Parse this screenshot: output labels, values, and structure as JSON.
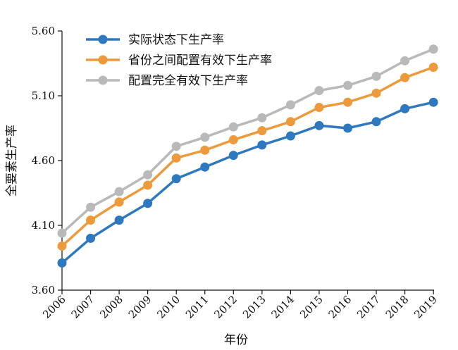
{
  "chart_data": {
    "type": "line",
    "xlabel": "年份",
    "ylabel": "全要素生产率",
    "categories": [
      "2006",
      "2007",
      "2008",
      "2009",
      "2010",
      "2011",
      "2012",
      "2013",
      "2014",
      "2015",
      "2016",
      "2017",
      "2018",
      "2019"
    ],
    "yticks": [
      "3.60",
      "4.10",
      "4.60",
      "5.10",
      "5.60"
    ],
    "ylim": [
      3.6,
      5.6
    ],
    "grid": false,
    "legend_position": "top-left",
    "series": [
      {
        "name": "实际状态下生产率",
        "color": "#2e78c0",
        "values": [
          3.81,
          4.0,
          4.14,
          4.27,
          4.46,
          4.55,
          4.64,
          4.72,
          4.79,
          4.87,
          4.85,
          4.9,
          5.0,
          5.05
        ]
      },
      {
        "name": "省份之间配置有效下生产率",
        "color": "#ec9a3c",
        "values": [
          3.94,
          4.14,
          4.28,
          4.41,
          4.62,
          4.68,
          4.76,
          4.83,
          4.9,
          5.01,
          5.05,
          5.12,
          5.24,
          5.32
        ]
      },
      {
        "name": "配置完全有效下生产率",
        "color": "#b9b9bb",
        "values": [
          4.04,
          4.24,
          4.36,
          4.49,
          4.71,
          4.78,
          4.86,
          4.93,
          5.03,
          5.14,
          5.18,
          5.25,
          5.37,
          5.46
        ]
      }
    ]
  }
}
